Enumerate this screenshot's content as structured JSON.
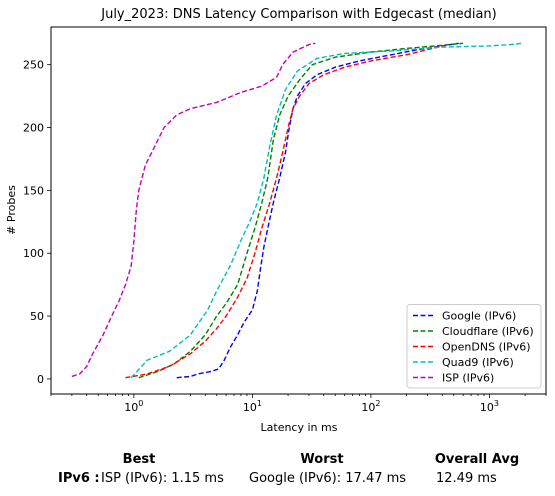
{
  "chart_data": {
    "type": "line",
    "title": "July_2023: DNS Latency Comparison with Edgecast (median)",
    "xlabel": "Latency in ms",
    "ylabel": "# Probes",
    "xscale": "log",
    "xlim": [
      0.2,
      3000
    ],
    "ylim": [
      -12,
      280
    ],
    "xticks": [
      1,
      10,
      100,
      1000
    ],
    "xtick_labels": [
      "10^0",
      "10^1",
      "10^2",
      "10^3"
    ],
    "yticks": [
      0,
      50,
      100,
      150,
      200,
      250
    ],
    "grid": false,
    "legend_position": "lower right",
    "series": [
      {
        "name": "Google (IPv6)",
        "color": "#0000ff",
        "points": [
          [
            2.3,
            1
          ],
          [
            3.0,
            2
          ],
          [
            3.5,
            4
          ],
          [
            4.5,
            6
          ],
          [
            5.2,
            8
          ],
          [
            5.8,
            15
          ],
          [
            6.5,
            25
          ],
          [
            7.5,
            35
          ],
          [
            8.5,
            45
          ],
          [
            10,
            55
          ],
          [
            11,
            70
          ],
          [
            11.8,
            90
          ],
          [
            12.5,
            105
          ],
          [
            13.5,
            120
          ],
          [
            15,
            140
          ],
          [
            17,
            160
          ],
          [
            19,
            180
          ],
          [
            20.5,
            200
          ],
          [
            22,
            215
          ],
          [
            24,
            225
          ],
          [
            28,
            235
          ],
          [
            35,
            242
          ],
          [
            50,
            248
          ],
          [
            80,
            253
          ],
          [
            150,
            258
          ],
          [
            250,
            262
          ],
          [
            400,
            265
          ],
          [
            550,
            267
          ]
        ]
      },
      {
        "name": "Cloudflare (IPv6)",
        "color": "#008000",
        "points": [
          [
            1.1,
            1
          ],
          [
            1.6,
            6
          ],
          [
            2.2,
            12
          ],
          [
            3,
            22
          ],
          [
            4,
            35
          ],
          [
            5,
            50
          ],
          [
            6,
            60
          ],
          [
            7.5,
            75
          ],
          [
            9,
            100
          ],
          [
            10.5,
            120
          ],
          [
            12,
            140
          ],
          [
            13.5,
            160
          ],
          [
            15,
            190
          ],
          [
            17,
            210
          ],
          [
            20,
            225
          ],
          [
            25,
            238
          ],
          [
            32,
            250
          ],
          [
            50,
            256
          ],
          [
            100,
            260
          ],
          [
            200,
            263
          ],
          [
            350,
            265
          ],
          [
            600,
            267
          ]
        ]
      },
      {
        "name": "OpenDNS (IPv6)",
        "color": "#ff0000",
        "points": [
          [
            0.85,
            1
          ],
          [
            1.3,
            4
          ],
          [
            2,
            10
          ],
          [
            3,
            20
          ],
          [
            4,
            30
          ],
          [
            5,
            40
          ],
          [
            6,
            50
          ],
          [
            7.5,
            65
          ],
          [
            9,
            80
          ],
          [
            10.5,
            100
          ],
          [
            12,
            120
          ],
          [
            14,
            140
          ],
          [
            16,
            160
          ],
          [
            18,
            180
          ],
          [
            20,
            200
          ],
          [
            22,
            215
          ],
          [
            25,
            225
          ],
          [
            30,
            235
          ],
          [
            40,
            242
          ],
          [
            60,
            248
          ],
          [
            100,
            253
          ],
          [
            200,
            258
          ],
          [
            300,
            262
          ],
          [
            450,
            266
          ]
        ]
      },
      {
        "name": "Quad9 (IPv6)",
        "color": "#00bfbf",
        "points": [
          [
            0.95,
            1
          ],
          [
            1.3,
            15
          ],
          [
            2,
            22
          ],
          [
            3,
            35
          ],
          [
            4.2,
            55
          ],
          [
            5,
            70
          ],
          [
            6.5,
            90
          ],
          [
            8,
            110
          ],
          [
            9.5,
            125
          ],
          [
            11,
            140
          ],
          [
            12.5,
            160
          ],
          [
            14,
            185
          ],
          [
            16,
            210
          ],
          [
            19,
            230
          ],
          [
            24,
            245
          ],
          [
            35,
            255
          ],
          [
            60,
            259
          ],
          [
            150,
            261
          ],
          [
            400,
            264
          ],
          [
            1000,
            265
          ],
          [
            1500,
            266
          ],
          [
            1900,
            267
          ]
        ]
      },
      {
        "name": "ISP (IPv6)",
        "color": "#bf00bf",
        "points": [
          [
            0.3,
            2
          ],
          [
            0.35,
            4
          ],
          [
            0.4,
            10
          ],
          [
            0.45,
            20
          ],
          [
            0.55,
            35
          ],
          [
            0.65,
            50
          ],
          [
            0.75,
            62
          ],
          [
            0.85,
            75
          ],
          [
            0.95,
            90
          ],
          [
            1.0,
            110
          ],
          [
            1.05,
            135
          ],
          [
            1.1,
            150
          ],
          [
            1.25,
            170
          ],
          [
            1.5,
            185
          ],
          [
            1.8,
            200
          ],
          [
            2.3,
            210
          ],
          [
            3,
            215
          ],
          [
            5,
            220
          ],
          [
            8,
            228
          ],
          [
            12,
            233
          ],
          [
            16,
            240
          ],
          [
            18,
            250
          ],
          [
            22,
            260
          ],
          [
            30,
            266
          ],
          [
            34,
            267
          ]
        ]
      }
    ]
  },
  "summary": {
    "best_header": "Best",
    "worst_header": "Worst",
    "avg_header": "Overall Avg",
    "row_label": "IPv6 :",
    "best_value": "ISP (IPv6): 1.15 ms",
    "worst_value": "Google (IPv6): 17.47 ms",
    "avg_value": "12.49 ms"
  }
}
